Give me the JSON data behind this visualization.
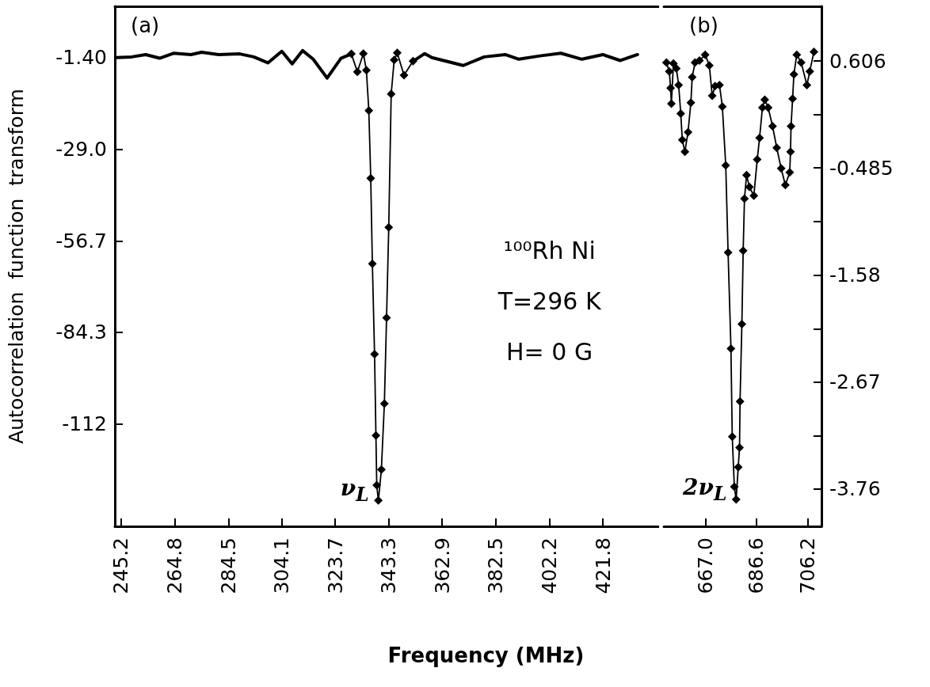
{
  "chart_data": [
    {
      "type": "line",
      "xlabel": "Frequency (MHz)",
      "ylabel": "Autocorrelation  function  transform",
      "xlim": [
        242.9,
        442.4
      ],
      "xticks": [
        245.2,
        264.8,
        284.5,
        304.1,
        323.7,
        343.3,
        362.9,
        382.5,
        402.2,
        421.8
      ],
      "ylim": [
        -142.8,
        14.05
      ],
      "yticks": [
        {
          "value": -1.4,
          "label": "-1.40"
        },
        {
          "value": -29,
          "label": "-29.0"
        },
        -56.7,
        -84.3,
        -112
      ],
      "series": [
        {
          "color": "#000000",
          "marker": "none",
          "x": [
            243.5,
            249.1,
            254.2,
            259.3,
            264.4,
            270.8,
            274.7,
            281.0,
            288.7,
            293.8,
            299.0,
            304.1,
            307.9,
            311.7,
            315.6,
            320.7,
            325.8,
            329.6
          ],
          "values": [
            -1.4,
            -1.2,
            -0.5,
            -1.6,
            -0.1,
            -0.5,
            0.2,
            -0.5,
            -0.3,
            -1.2,
            -3.0,
            0.5,
            -3.3,
            0.7,
            -1.9,
            -7.6,
            -1.6,
            -0.3
          ]
        },
        {
          "color": "#000000",
          "marker": "diamond",
          "x": [
            329.6,
            331.8,
            334.0,
            335.1,
            336.0,
            336.7,
            337.3,
            338.1,
            338.6,
            338.9,
            339.5,
            340.6,
            341.7,
            342.5,
            343.3,
            344.2,
            345.3,
            346.4,
            348.9,
            352.2
          ],
          "values": [
            -0.3,
            -5.7,
            -0.2,
            -5.2,
            -17.4,
            -37.8,
            -63.6,
            -90.9,
            -115.4,
            -130.4,
            -135.0,
            -125.7,
            -105.8,
            -79.9,
            -52.6,
            -12.4,
            -2.1,
            0.0,
            -6.7,
            -2.5
          ]
        },
        {
          "color": "#000000",
          "marker": "none",
          "x": [
            352.2,
            356.5,
            359.1,
            370.6,
            378.3,
            386.0,
            391.0,
            398.7,
            406.4,
            414.1,
            421.8,
            428.2,
            434.5
          ],
          "values": [
            -2.5,
            -0.2,
            -1.4,
            -3.8,
            -1.2,
            -0.5,
            -1.9,
            -0.9,
            -0.1,
            -1.9,
            -0.5,
            -2.3,
            -0.5
          ]
        }
      ],
      "annotations": [
        "(a)",
        "¹⁰⁰Rh Ni",
        "T=296 K",
        "H= 0 G",
        {
          "text": "ν$_{L}$",
          "x": 339.5,
          "y": -135
        }
      ]
    },
    {
      "type": "line",
      "xlim": [
        651,
        711.6
      ],
      "xticks": [
        {
          "value": 667,
          "label": "667.0"
        },
        686.6,
        706.2
      ],
      "ylim": [
        -4.145,
        1.164
      ],
      "yticks": [
        0.606,
        {
          "value": 0.06,
          "label": null
        },
        -0.485,
        {
          "value": -1.03,
          "label": null
        },
        -1.58,
        {
          "value": -2.13,
          "label": null
        },
        -2.67,
        {
          "value": -3.22,
          "label": null
        },
        -3.76
      ],
      "series": [
        {
          "color": "#000000",
          "marker": "diamond",
          "x": [
            652.0,
            653.1,
            653.6,
            653.9,
            654.7,
            655.8,
            656.7,
            657.5,
            658.1,
            659.1,
            660.3,
            661.4,
            661.9,
            663.0,
            664.7,
            666.9,
            668.5,
            669.6,
            670.7,
            672.4,
            673.5,
            674.8,
            675.7,
            676.8,
            677.3,
            678.1,
            678.8,
            679.6,
            680.1,
            680.3,
            681.0,
            681.5,
            682.0,
            682.8,
            683.9,
            685.6,
            686.9,
            687.8,
            688.9,
            689.8,
            691.1,
            692.8,
            694.4,
            696.1,
            697.7,
            699.4,
            699.7,
            699.9,
            700.5,
            701.0,
            702.1,
            703.8,
            706.0,
            707.1,
            708.7
          ],
          "values": [
            0.59,
            0.5,
            0.33,
            0.17,
            0.58,
            0.53,
            0.36,
            0.07,
            -0.2,
            -0.32,
            -0.12,
            0.18,
            0.44,
            0.59,
            0.61,
            0.67,
            0.56,
            0.25,
            0.35,
            0.36,
            0.14,
            -0.46,
            -1.35,
            -2.33,
            -3.23,
            -3.74,
            -3.87,
            -3.54,
            -3.34,
            -2.87,
            -2.08,
            -1.33,
            -0.8,
            -0.56,
            -0.68,
            -0.77,
            -0.4,
            -0.18,
            0.13,
            0.21,
            0.13,
            -0.06,
            -0.28,
            -0.49,
            -0.66,
            -0.53,
            -0.32,
            -0.06,
            0.22,
            0.47,
            0.67,
            0.59,
            0.36,
            0.5,
            0.7
          ]
        }
      ],
      "annotations": [
        "(b)",
        {
          "text": "2ν$_{L}$",
          "x": 678.8,
          "y": -3.87
        }
      ]
    }
  ]
}
